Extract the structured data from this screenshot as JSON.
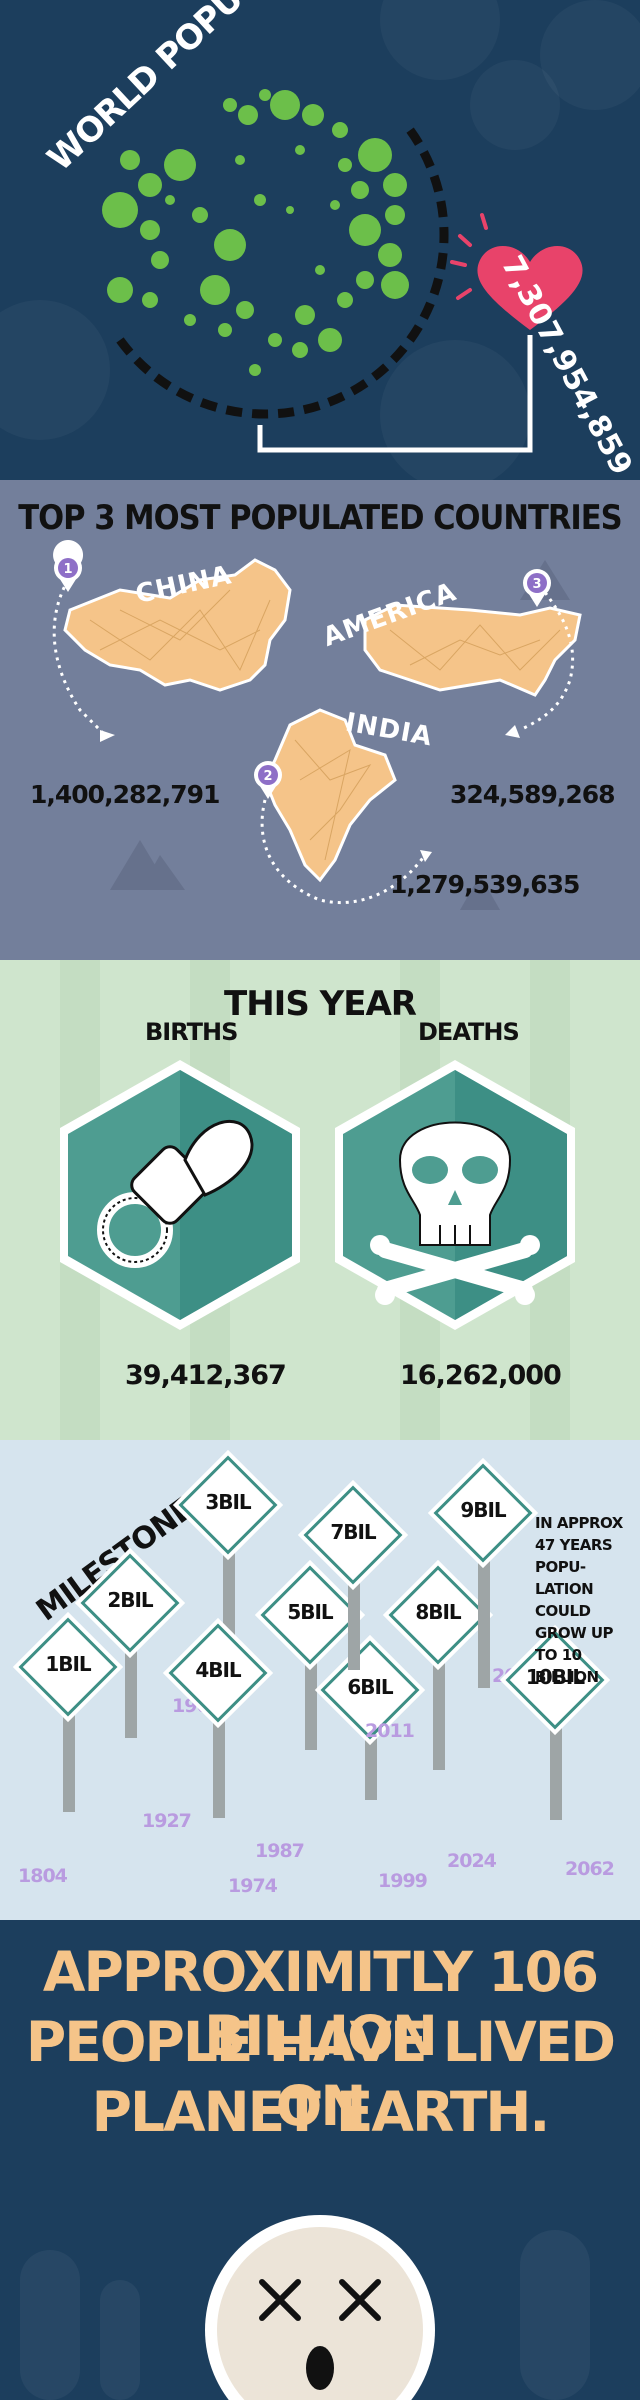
{
  "world": {
    "title": "WORLD POPULATION",
    "population": "7,307,954,859"
  },
  "countries": {
    "heading": "TOP 3 MOST POPULATED COUNTRIES",
    "items": [
      {
        "rank": "1",
        "name": "CHINA",
        "count": "1,400,282,791"
      },
      {
        "rank": "2",
        "name": "INDIA",
        "count": "1,279,539,635"
      },
      {
        "rank": "3",
        "name": "AMERICA",
        "count": "324,589,268"
      }
    ]
  },
  "this_year": {
    "heading": "THIS YEAR",
    "births_label": "BIRTHS",
    "births_count": "39,412,367",
    "deaths_label": "DEATHS",
    "deaths_count": "16,262,000"
  },
  "milestones": {
    "heading": "MILESTONES",
    "items": [
      {
        "label": "1BIL",
        "year": "1804"
      },
      {
        "label": "2BIL",
        "year": "1927"
      },
      {
        "label": "3BIL",
        "year": "1960"
      },
      {
        "label": "4BIL",
        "year": "1974"
      },
      {
        "label": "5BIL",
        "year": "1987"
      },
      {
        "label": "6BIL",
        "year": "1999"
      },
      {
        "label": "7BIL",
        "year": "2011"
      },
      {
        "label": "8BIL",
        "year": "2024"
      },
      {
        "label": "9BIL",
        "year": "2040"
      },
      {
        "label": "10BIL",
        "year": "2062"
      }
    ],
    "note": "IN APPROX 47 YEARS POPU-LATION COULD GROW UP TO 10 BILLION"
  },
  "history": {
    "lines": [
      "APPROXIMITLY 106 BILLION",
      "PEOPLE HAVE LIVED ON",
      "PLANET EARTH."
    ]
  },
  "colors": {
    "navy": "#1c3e5d",
    "slate": "#737f9b",
    "mint": "#cfe5cd",
    "sky": "#d6e4ee",
    "green": "#6cbf4a",
    "teal": "#3d8f85",
    "orange_map": "#f5c489",
    "heart": "#e8436a",
    "purple": "#b99be0",
    "gold_text": "#f5c489"
  }
}
